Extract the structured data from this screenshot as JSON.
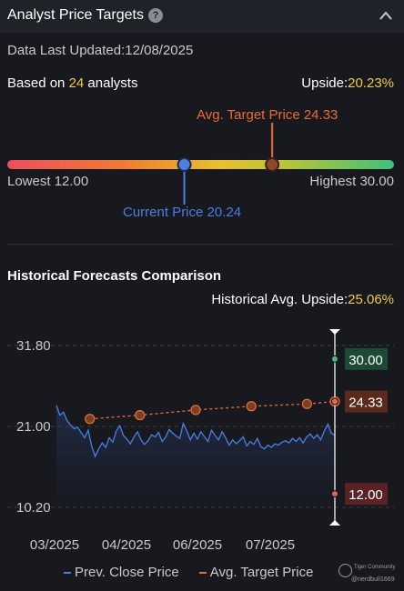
{
  "header": {
    "title": "Analyst Price Targets",
    "help_icon": "?",
    "collapse_icon": "chevron-up-icon"
  },
  "updated": {
    "label": "Data Last Updated:",
    "date": "12/08/2025"
  },
  "analysts": {
    "prefix": "Based on ",
    "count": "24",
    "suffix": " analysts"
  },
  "upside": {
    "label": "Upside:",
    "value": "20.23%"
  },
  "gauge": {
    "avg_target_label": "Avg. Target Price 24.33",
    "lowest_label": "Lowest 12.00",
    "highest_label": "Highest 30.00",
    "current_label": "Current Price 20.24",
    "low": 12.0,
    "high": 30.0,
    "current": 20.24,
    "avg_target": 24.33,
    "colors": {
      "current": "#4a7fe0",
      "avg": "#e86c3b"
    }
  },
  "historical": {
    "title": "Historical Forecasts Comparison",
    "upside_label": "Historical Avg. Upside:",
    "upside_value": "25.06%"
  },
  "chart_data": {
    "type": "line",
    "ylim": [
      10.2,
      31.8
    ],
    "yticks": [
      "31.80",
      "21.00",
      "10.20"
    ],
    "x_labels": [
      "03/2025",
      "04/2025",
      "06/2025",
      "07/2025"
    ],
    "series": [
      {
        "name": "Prev. Close Price",
        "color": "#4a7fe0",
        "values": [
          23.8,
          22.5,
          22.9,
          21.8,
          21.2,
          20.7,
          20.9,
          20.2,
          19.5,
          20.5,
          18.4,
          17.0,
          18.0,
          18.8,
          18.2,
          19.5,
          18.9,
          20.4,
          21.1,
          19.8,
          19.3,
          18.7,
          19.6,
          20.3,
          19.2,
          18.6,
          19.1,
          19.9,
          19.6,
          20.2,
          19.0,
          19.6,
          20.6,
          20.1,
          19.7,
          19.4,
          21.4,
          20.4,
          19.2,
          20.1,
          19.3,
          20.3,
          19.6,
          19.0,
          20.5,
          19.8,
          19.2,
          20.3,
          19.5,
          18.5,
          19.2,
          18.7,
          19.1,
          19.6,
          18.4,
          19.0,
          18.6,
          19.4,
          18.3,
          18.0,
          18.5,
          18.2,
          18.7,
          18.5,
          18.9,
          19.1,
          18.8,
          19.4,
          19.0,
          19.5,
          18.8,
          19.6,
          20.0,
          19.4,
          19.9,
          19.2,
          20.4,
          21.3,
          20.1,
          19.8
        ]
      },
      {
        "name": "Avg. Target Price",
        "color": "#e86c3b",
        "values": [
          22.0,
          22.5,
          23.2,
          23.7,
          24.0,
          24.33
        ],
        "positions": [
          0.12,
          0.3,
          0.5,
          0.7,
          0.9,
          1.0
        ]
      }
    ],
    "side_labels": [
      {
        "text": "30.00",
        "value": 30.0,
        "bg": "#1d4a36",
        "dot": "#3fc07a"
      },
      {
        "text": "24.33",
        "value": 24.33,
        "bg": "#5a2a1c",
        "dot": "#e86c3b"
      },
      {
        "text": "12.00",
        "value": 12.0,
        "bg": "#5a2226",
        "dot": "#e0605a"
      }
    ]
  },
  "legend": {
    "prev_close": "Prev. Close Price",
    "avg_target": "Avg. Target Price"
  },
  "watermark": {
    "name": "Tiger Community",
    "user": "@nerdbull1669"
  }
}
